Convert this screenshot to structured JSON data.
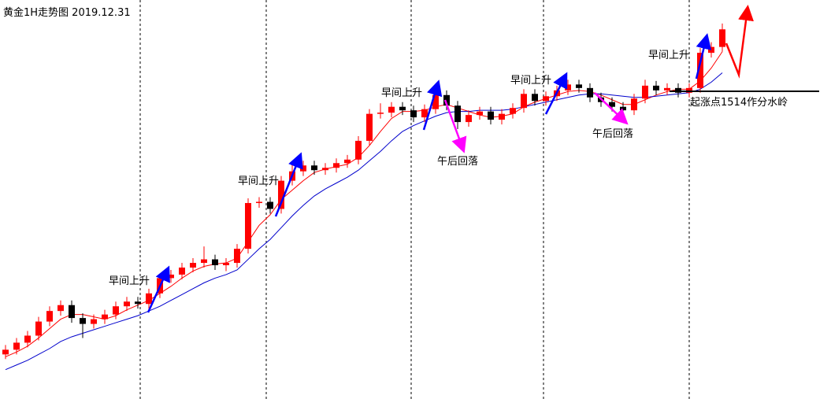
{
  "chart_data": {
    "type": "candlestick",
    "title": "黄金1H走势图 2019.12.31",
    "ylim": [
      1488,
      1522
    ],
    "up_color": "#ff0000",
    "down_color": "#000000",
    "open": [
      1491.8,
      1492.2,
      1492.8,
      1493.4,
      1494.6,
      1495.5,
      1496.0,
      1494.9,
      1494.4,
      1494.8,
      1495.2,
      1495.9,
      1496.3,
      1496.1,
      1497.0,
      1498.3,
      1498.6,
      1499.2,
      1499.6,
      1499.9,
      1499.4,
      1499.6,
      1500.8,
      1504.7,
      1504.8,
      1504.2,
      1506.6,
      1507.4,
      1507.9,
      1507.5,
      1507.7,
      1508.1,
      1508.4,
      1510.0,
      1512.3,
      1512.4,
      1512.9,
      1512.6,
      1512.0,
      1512.7,
      1513.9,
      1513.0,
      1511.6,
      1512.2,
      1512.5,
      1511.8,
      1512.3,
      1512.8,
      1514.0,
      1513.4,
      1513.8,
      1514.3,
      1514.8,
      1514.5,
      1513.7,
      1513.3,
      1512.9,
      1512.6,
      1513.6,
      1514.7,
      1514.3,
      1514.5,
      1514.1,
      1514.5,
      1517.5,
      1518.0
    ],
    "high": [
      1492.6,
      1493.2,
      1493.8,
      1495.0,
      1495.9,
      1496.4,
      1496.4,
      1495.3,
      1495.2,
      1495.6,
      1496.3,
      1496.7,
      1496.7,
      1497.4,
      1498.7,
      1499.0,
      1499.6,
      1500.0,
      1501.0,
      1500.3,
      1500.0,
      1501.2,
      1505.1,
      1505.2,
      1505.2,
      1507.0,
      1508.0,
      1508.3,
      1508.3,
      1508.1,
      1508.5,
      1508.8,
      1510.4,
      1512.7,
      1513.2,
      1513.3,
      1513.3,
      1513.0,
      1513.1,
      1514.3,
      1514.3,
      1513.4,
      1512.6,
      1512.9,
      1512.9,
      1512.7,
      1513.2,
      1514.4,
      1514.4,
      1514.2,
      1514.7,
      1515.2,
      1515.2,
      1514.9,
      1514.1,
      1513.7,
      1513.3,
      1514.0,
      1515.2,
      1515.1,
      1514.9,
      1514.9,
      1514.9,
      1517.9,
      1518.4,
      1520.0
    ],
    "low": [
      1491.4,
      1491.8,
      1492.4,
      1493.0,
      1494.2,
      1495.1,
      1494.5,
      1493.2,
      1494.0,
      1494.4,
      1494.8,
      1495.5,
      1495.7,
      1495.7,
      1496.6,
      1497.9,
      1498.2,
      1498.8,
      1499.2,
      1499.0,
      1498.9,
      1499.2,
      1500.4,
      1504.3,
      1503.8,
      1503.8,
      1506.2,
      1507.0,
      1507.1,
      1507.1,
      1507.3,
      1507.7,
      1508.0,
      1509.6,
      1511.9,
      1512.0,
      1512.2,
      1511.6,
      1511.6,
      1512.3,
      1512.6,
      1511.0,
      1511.2,
      1511.8,
      1511.4,
      1511.4,
      1511.9,
      1512.4,
      1513.0,
      1513.0,
      1513.4,
      1513.9,
      1514.1,
      1513.3,
      1512.9,
      1512.5,
      1512.2,
      1512.2,
      1513.2,
      1513.9,
      1513.9,
      1513.7,
      1513.7,
      1514.1,
      1517.1,
      1517.6
    ],
    "close": [
      1492.2,
      1492.8,
      1493.4,
      1494.6,
      1495.5,
      1496.0,
      1494.9,
      1494.4,
      1494.8,
      1495.2,
      1495.9,
      1496.3,
      1496.1,
      1497.0,
      1498.3,
      1498.6,
      1499.2,
      1499.6,
      1499.9,
      1499.4,
      1499.6,
      1500.8,
      1504.7,
      1504.8,
      1504.2,
      1506.6,
      1507.4,
      1507.9,
      1507.5,
      1507.7,
      1508.1,
      1508.4,
      1510.0,
      1512.3,
      1512.4,
      1512.9,
      1512.6,
      1512.0,
      1512.7,
      1513.9,
      1513.0,
      1511.6,
      1512.2,
      1512.5,
      1511.8,
      1512.3,
      1512.8,
      1514.0,
      1513.4,
      1513.8,
      1514.3,
      1514.8,
      1514.5,
      1513.7,
      1513.3,
      1512.9,
      1512.6,
      1513.6,
      1514.7,
      1514.3,
      1514.5,
      1514.1,
      1514.5,
      1517.5,
      1518.0,
      1519.5
    ],
    "series": [
      {
        "color": "#ff0000",
        "values": [
          1491.6,
          1492.0,
          1492.5,
          1493.2,
          1494.0,
          1494.8,
          1495.2,
          1495.2,
          1495.0,
          1494.8,
          1495.1,
          1495.6,
          1496.0,
          1496.4,
          1497.0,
          1497.6,
          1498.3,
          1498.9,
          1499.3,
          1499.5,
          1499.6,
          1500.0,
          1501.4,
          1502.8,
          1503.7,
          1505.0,
          1505.8,
          1506.6,
          1507.3,
          1507.6,
          1507.8,
          1508.0,
          1508.6,
          1509.6,
          1510.8,
          1511.9,
          1512.5,
          1512.5,
          1512.6,
          1512.9,
          1513.1,
          1512.8,
          1512.5,
          1512.2,
          1512.0,
          1512.1,
          1512.3,
          1512.9,
          1513.3,
          1513.6,
          1513.9,
          1514.2,
          1514.3,
          1514.2,
          1513.9,
          1513.5,
          1513.1,
          1513.1,
          1513.5,
          1513.9,
          1514.2,
          1514.4,
          1514.4,
          1515.1,
          1516.2,
          1517.6
        ]
      },
      {
        "color": "#0000cc",
        "values": [
          1490.5,
          1490.9,
          1491.3,
          1491.8,
          1492.3,
          1492.9,
          1493.3,
          1493.6,
          1493.9,
          1494.2,
          1494.5,
          1494.8,
          1495.1,
          1495.5,
          1495.9,
          1496.4,
          1496.9,
          1497.4,
          1497.9,
          1498.3,
          1498.6,
          1499.0,
          1499.9,
          1500.8,
          1501.6,
          1502.6,
          1503.6,
          1504.5,
          1505.3,
          1505.9,
          1506.4,
          1506.9,
          1507.5,
          1508.3,
          1509.1,
          1510.0,
          1510.8,
          1511.3,
          1511.7,
          1512.1,
          1512.4,
          1512.5,
          1512.5,
          1512.6,
          1512.6,
          1512.6,
          1512.7,
          1512.9,
          1513.1,
          1513.3,
          1513.5,
          1513.7,
          1513.9,
          1514.0,
          1514.0,
          1513.9,
          1513.8,
          1513.7,
          1513.7,
          1513.8,
          1513.9,
          1514.0,
          1514.1,
          1514.4,
          1515.0,
          1515.8
        ]
      }
    ],
    "annotations": [
      "早间上升",
      "早间上升",
      "早间上升",
      "午后回落",
      "早间上升",
      "午后回落",
      "早间上升",
      "起涨点1514作分水岭"
    ]
  }
}
